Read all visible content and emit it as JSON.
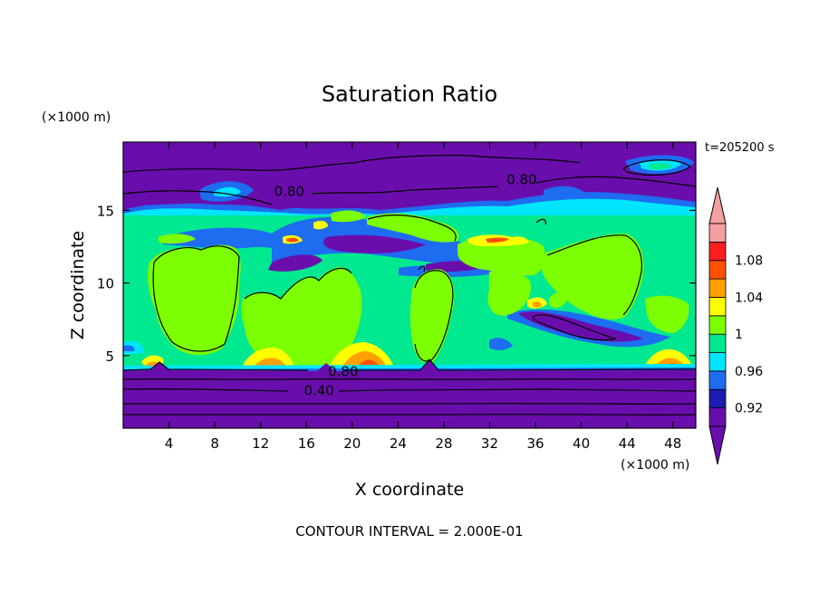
{
  "chart_data": {
    "type": "heatmap",
    "title": "Saturation Ratio",
    "xlabel": "X coordinate",
    "ylabel": "Z coordinate",
    "x_unit_label": "(×1000 m)",
    "y_unit_label": "(×1000 m)",
    "time_label": "t=205200 s",
    "footer": "CONTOUR INTERVAL = 2.000E-01",
    "xlim": [
      0,
      50
    ],
    "ylim": [
      0,
      19.7
    ],
    "x_ticks": [
      4,
      8,
      12,
      16,
      20,
      24,
      28,
      32,
      36,
      40,
      44,
      48
    ],
    "y_ticks": [
      5,
      10,
      15
    ],
    "colorbar": {
      "labels": [
        "0.92",
        "0.96",
        "1",
        "1.04",
        "1.08"
      ],
      "levels": [
        0.9,
        0.92,
        0.94,
        0.96,
        0.98,
        1.0,
        1.02,
        1.04,
        1.06,
        1.08,
        1.1
      ],
      "colors": [
        "#6a0dad",
        "#1c1cb0",
        "#1e6cf0",
        "#00e5ff",
        "#00e890",
        "#7cff00",
        "#ffff00",
        "#ffa000",
        "#ff5000",
        "#ff1e1e",
        "#f4a0a0"
      ],
      "extend": "both"
    },
    "contour_labels": [
      {
        "text": "0.80",
        "x": 14.5,
        "z": 16.3
      },
      {
        "text": "0.80",
        "x": 34.8,
        "z": 17.1
      },
      {
        "text": "0.80",
        "x": 19.2,
        "z": 3.9
      },
      {
        "text": "0.40",
        "x": 17.1,
        "z": 2.6
      }
    ]
  }
}
